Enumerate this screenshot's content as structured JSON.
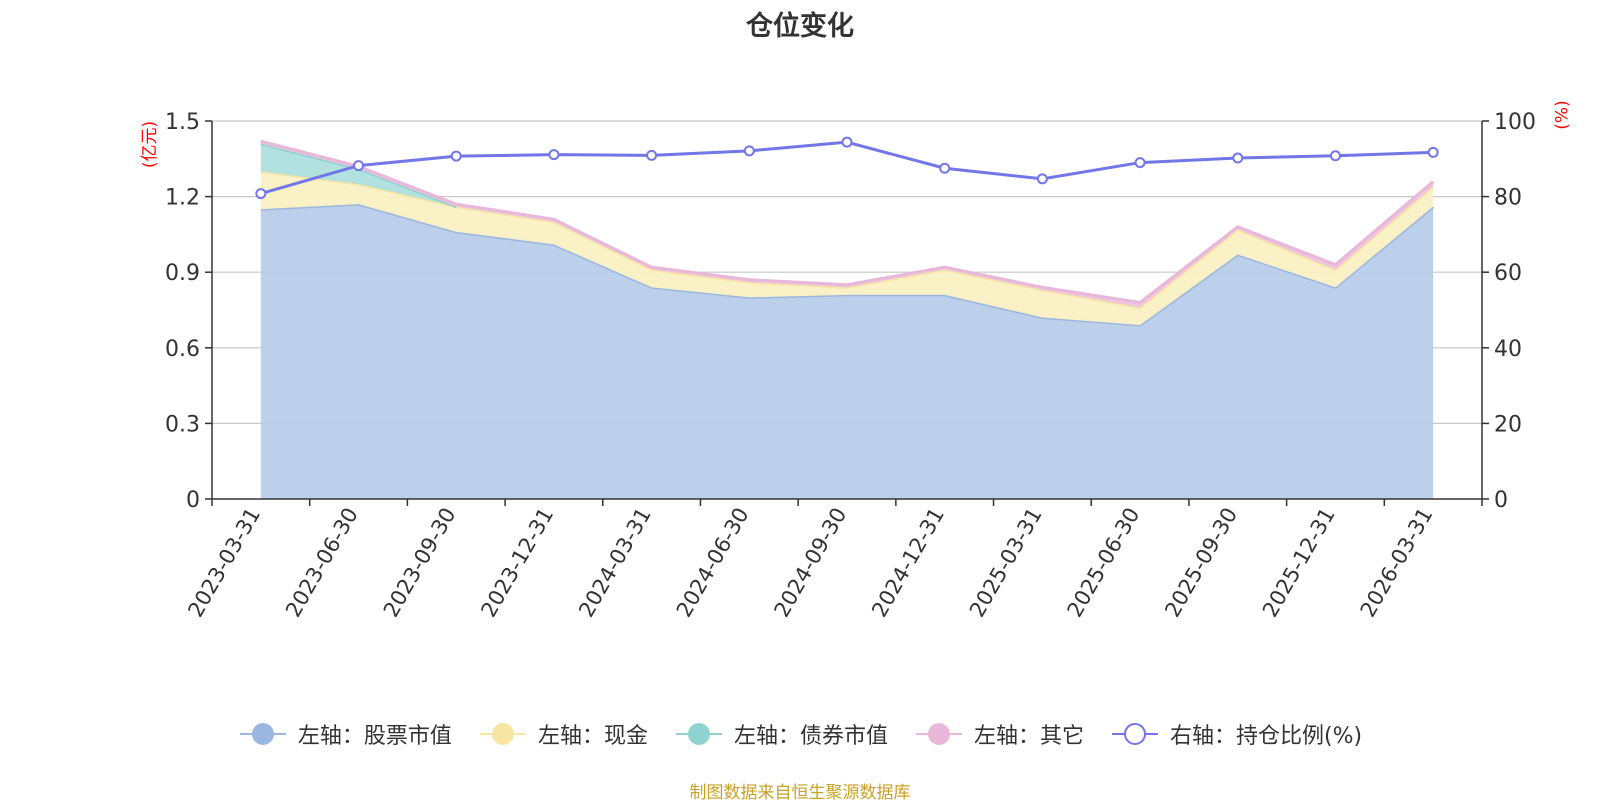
{
  "chart_data": {
    "type": "area",
    "title": "仓位变化",
    "left_axis_unit": "(亿元)",
    "right_axis_unit": "(%)",
    "categories": [
      "2023-03-31",
      "2023-06-30",
      "2023-09-30",
      "2023-12-31",
      "2024-03-31",
      "2024-06-30",
      "2024-09-30",
      "2024-12-31",
      "2025-03-31",
      "2025-06-30",
      "2025-09-30",
      "2025-12-31",
      "2026-03-31"
    ],
    "left_ylim": [
      0,
      1.5
    ],
    "left_ticks": [
      "0",
      "0.3",
      "0.6",
      "0.9",
      "1.2",
      "1.5"
    ],
    "right_ylim": [
      0,
      100
    ],
    "right_ticks": [
      "0",
      "20",
      "40",
      "60",
      "80",
      "100"
    ],
    "series": [
      {
        "name": "左轴：股票市值",
        "axis": "left",
        "stack": true,
        "color": "#9bb7e0",
        "fill": "#b8cdea",
        "values": [
          1.15,
          1.17,
          1.06,
          1.01,
          0.84,
          0.8,
          0.81,
          0.81,
          0.72,
          0.69,
          0.97,
          0.84,
          1.16
        ]
      },
      {
        "name": "左轴：现金",
        "axis": "left",
        "stack": true,
        "color": "#f7e6a3",
        "fill": "#fbf0c4",
        "values": [
          0.15,
          0.08,
          0.1,
          0.09,
          0.07,
          0.06,
          0.03,
          0.1,
          0.11,
          0.07,
          0.1,
          0.07,
          0.08
        ]
      },
      {
        "name": "左轴：债券市值",
        "axis": "left",
        "stack": true,
        "color": "#8fd3d0",
        "fill": "#aee0de",
        "values": [
          0.11,
          0.06,
          0,
          0,
          0,
          0,
          0,
          0,
          0,
          0,
          0,
          0,
          0
        ]
      },
      {
        "name": "左轴：其它",
        "axis": "left",
        "stack": true,
        "color": "#e8b7d9",
        "fill": "#eec3df",
        "values": [
          0.01,
          0.01,
          0.01,
          0.01,
          0.01,
          0.01,
          0.01,
          0.01,
          0.01,
          0.02,
          0.01,
          0.02,
          0.02
        ]
      },
      {
        "name": "右轴：持仓比例(%)",
        "axis": "right",
        "stack": false,
        "color": "#7276e8",
        "values": [
          80.8,
          88.2,
          90.7,
          91.1,
          90.9,
          92.1,
          94.4,
          87.5,
          84.7,
          89.0,
          90.2,
          90.8,
          91.7
        ]
      }
    ],
    "legend_position": "bottom",
    "grid": true
  },
  "footer": {
    "source": "制图数据来自恒生聚源数据库"
  }
}
